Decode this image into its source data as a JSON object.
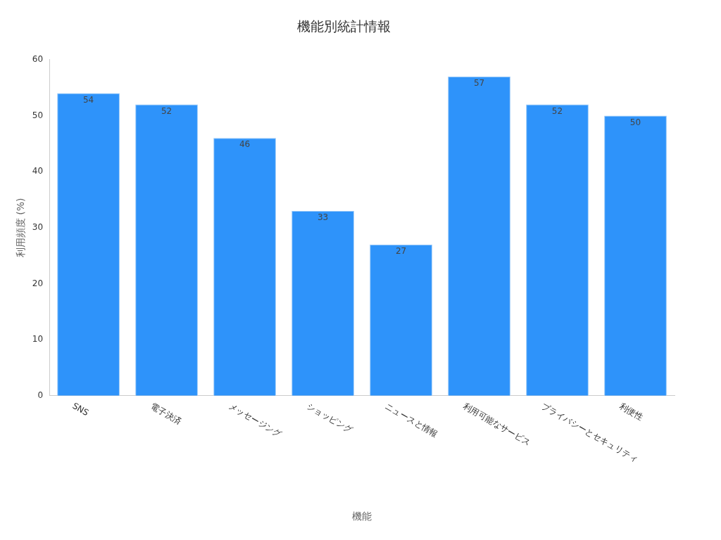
{
  "chart_data": {
    "type": "bar",
    "title": "機能別統計情報",
    "xlabel": "機能",
    "ylabel": "利用頻度 (%)",
    "categories": [
      "SNS",
      "電子決済",
      "メッセージング",
      "ショッピング",
      "ニュースと情報",
      "利用可能なサービス",
      "プライバシーとセキュリティ",
      "利便性"
    ],
    "values": [
      54,
      52,
      46,
      33,
      27,
      57,
      52,
      50
    ],
    "color": "#2e93fa",
    "ylim": [
      0,
      60
    ],
    "yticks": [
      0,
      10,
      20,
      30,
      40,
      50,
      60
    ],
    "grid": false,
    "legend": false,
    "data_labels": true
  }
}
